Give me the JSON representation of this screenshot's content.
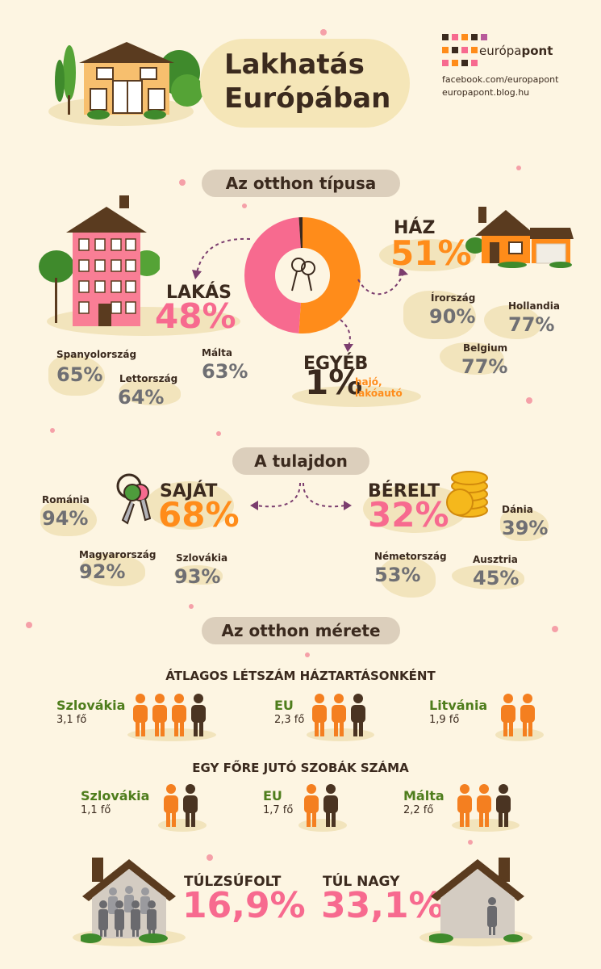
{
  "header": {
    "title_line1": "Lakhatás",
    "title_line2": "Európában",
    "brand_part1": "európa",
    "brand_part2": "pont",
    "facebook": "facebook.com/europapont",
    "blog": "europapont.blog.hu"
  },
  "section_type": {
    "pill": "Az otthon típusa",
    "flat_label": "LAKÁS",
    "flat_pct": "48%",
    "house_label": "HÁZ",
    "house_pct": "51%",
    "other_label": "EGYÉB",
    "other_pct": "1%",
    "other_note_line1": "hajó,",
    "other_note_line2": "lakóautó",
    "flat_countries": [
      {
        "name": "Spanyolország",
        "value": "65%"
      },
      {
        "name": "Lettország",
        "value": "64%"
      },
      {
        "name": "Málta",
        "value": "63%"
      }
    ],
    "house_countries": [
      {
        "name": "Írország",
        "value": "90%"
      },
      {
        "name": "Hollandia",
        "value": "77%"
      },
      {
        "name": "Belgium",
        "value": "77%"
      }
    ],
    "donut": [
      {
        "name": "HÁZ",
        "value": 51,
        "color": "#ff8c1a"
      },
      {
        "name": "LAKÁS",
        "value": 48,
        "color": "#f76a8f"
      },
      {
        "name": "EGYÉB",
        "value": 1,
        "color": "#3b2a1e"
      }
    ]
  },
  "section_owner": {
    "pill": "A tulajdon",
    "own_label": "SAJÁT",
    "own_pct": "68%",
    "rent_label": "BÉRELT",
    "rent_pct": "32%",
    "own_countries": [
      {
        "name": "Románia",
        "value": "94%"
      },
      {
        "name": "Magyarország",
        "value": "92%"
      },
      {
        "name": "Szlovákia",
        "value": "93%"
      }
    ],
    "rent_countries": [
      {
        "name": "Dánia",
        "value": "39%"
      },
      {
        "name": "Németország",
        "value": "53%"
      },
      {
        "name": "Ausztria",
        "value": "45%"
      }
    ]
  },
  "section_size": {
    "pill": "Az otthon mérete",
    "household_heading": "ÁTLAGOS LÉTSZÁM HÁZTARTÁSONKÉNT",
    "household": [
      {
        "name": "Szlovákia",
        "value": "3,1 fő",
        "count": 3.1
      },
      {
        "name": "EU",
        "value": "2,3 fő",
        "count": 2.3
      },
      {
        "name": "Litvánia",
        "value": "1,9 fő",
        "count": 1.9
      }
    ],
    "rooms_heading": "EGY FŐRE JUTÓ SZOBÁK SZÁMA",
    "rooms": [
      {
        "name": "Szlovákia",
        "value": "1,1 fő",
        "count": 1.1
      },
      {
        "name": "EU",
        "value": "1,7 fő",
        "count": 1.7
      },
      {
        "name": "Málta",
        "value": "2,2 fő",
        "count": 2.2
      }
    ],
    "overcrowded_label": "TÚLZSÚFOLT",
    "overcrowded_pct": "16,9%",
    "toobig_label": "TÚL NAGY",
    "toobig_pct": "33,1%"
  },
  "colors": {
    "orange": "#ff8c1a",
    "pink": "#f76a8f",
    "brown": "#3b2a1e",
    "green": "#4e7d1c",
    "gray": "#6f6f73",
    "background": "#fdf5e2"
  }
}
